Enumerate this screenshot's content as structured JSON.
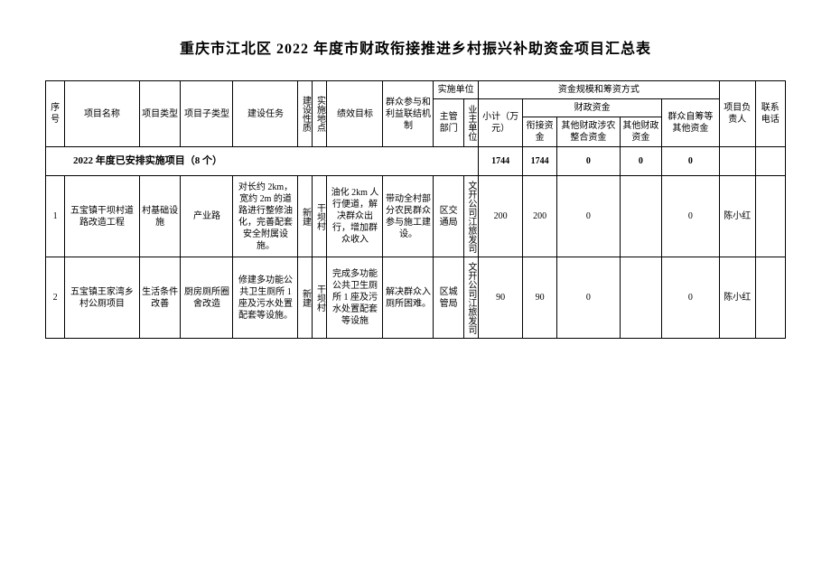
{
  "title": "重庆市江北区 2022 年度市财政衔接推进乡村振兴补助资金项目汇总表",
  "headers": {
    "seq": "序号",
    "project_name": "项目名称",
    "project_type": "项目类型",
    "project_subtype": "项目子类型",
    "build_task": "建设任务",
    "build_nature": "建设性质",
    "location": "实施地点",
    "performance_goal": "绩效目标",
    "mass_mechanism": "群众参与和利益联结机制",
    "impl_group": "实施单位",
    "supervise_dept": "主管部门",
    "owner_unit": "业主单位",
    "fund_group": "资金规模和筹资方式",
    "subtotal": "小计（万元）",
    "fiscal_fund": "财政资金",
    "bridge_fund": "衔接资金",
    "other_fiscal": "其他财政涉农整合资金",
    "other_fund": "其他财政资金",
    "self_raised": "群众自筹等其他资金",
    "leader": "项目负责人",
    "contact": "联系电话"
  },
  "section": {
    "label": "2022 年度已安排实施项目（8 个）",
    "subtotal": "1744",
    "bridge": "1744",
    "other_fiscal": "0",
    "other_fund": "0",
    "self_raised": "0"
  },
  "rows": [
    {
      "seq": "1",
      "name": "五宝镇干坝村道路改造工程",
      "type": "村基础设施",
      "subtype": "产业路",
      "task": "对长约 2km，宽约 2m 的道路进行整修油化，完善配套安全附属设施。",
      "nature": "新建",
      "location": "干坝村",
      "goal": "油化 2km 人行便道，解决群众出行，增加群众收入",
      "mechanism": "带动全村部分农民群众参与施工建设。",
      "dept": "区交通局",
      "owner": "文开公司江旅发司",
      "subtotal": "200",
      "bridge": "200",
      "other_fiscal": "0",
      "other_fund": "",
      "self_raised": "0",
      "leader": "陈小红",
      "contact": ""
    },
    {
      "seq": "2",
      "name": "五宝镇王家湾乡村公厕项目",
      "type": "生活条件改善",
      "subtype": "厨房厕所圈舍改造",
      "task": "修建多功能公共卫生厕所 1 座及污水处置配套等设施。",
      "nature": "新建",
      "location": "干坝村",
      "goal": "完成多功能公共卫生厕所 1 座及污水处置配套等设施",
      "mechanism": "解决群众入厕所困难。",
      "dept": "区城管局",
      "owner": "文开公司江旅发司",
      "subtotal": "90",
      "bridge": "90",
      "other_fiscal": "0",
      "other_fund": "",
      "self_raised": "0",
      "leader": "陈小红",
      "contact": ""
    }
  ]
}
